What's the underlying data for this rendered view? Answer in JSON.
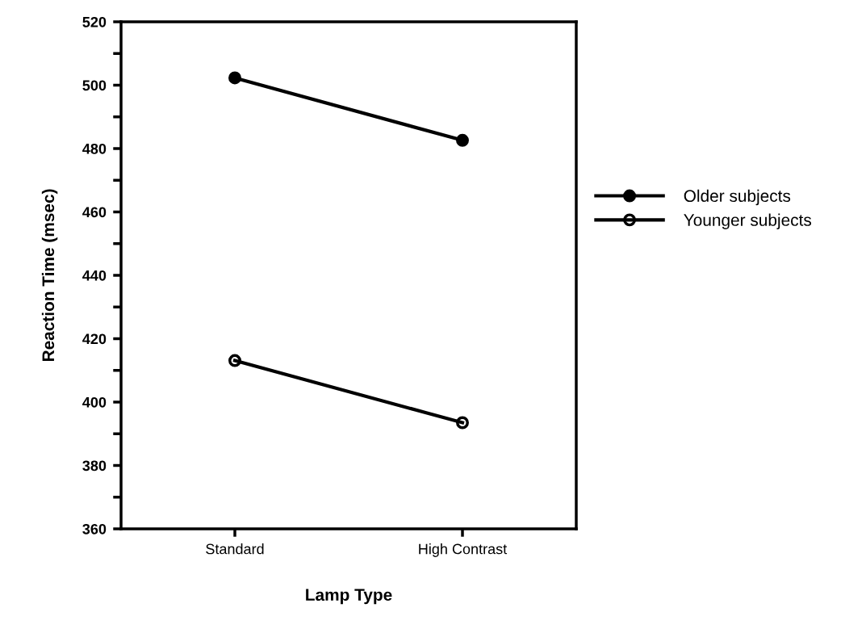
{
  "chart_data": {
    "type": "line",
    "xlabel": "Lamp Type",
    "ylabel": "Reaction Time (msec)",
    "categories": [
      "Standard",
      "High Contrast"
    ],
    "series": [
      {
        "name": "Older subjects",
        "color": "#000000",
        "values": [
          502.3,
          482.6
        ]
      },
      {
        "name": "Younger subjects",
        "color": "#000000",
        "values": [
          413.1,
          393.5
        ]
      }
    ],
    "ylim": [
      360,
      520
    ],
    "yticks": [
      360,
      {
        "value": 370,
        "label": null
      },
      380,
      {
        "value": 390,
        "label": null
      },
      400,
      {
        "value": 410,
        "label": null
      },
      420,
      {
        "value": 430,
        "label": null
      },
      440,
      {
        "value": 450,
        "label": null
      },
      460,
      {
        "value": 470,
        "label": null
      },
      480,
      {
        "value": 490,
        "label": null
      },
      500,
      {
        "value": 510,
        "label": null
      },
      520
    ],
    "marker": "circle",
    "line_style": "solid",
    "legend": "right",
    "grid": false
  }
}
